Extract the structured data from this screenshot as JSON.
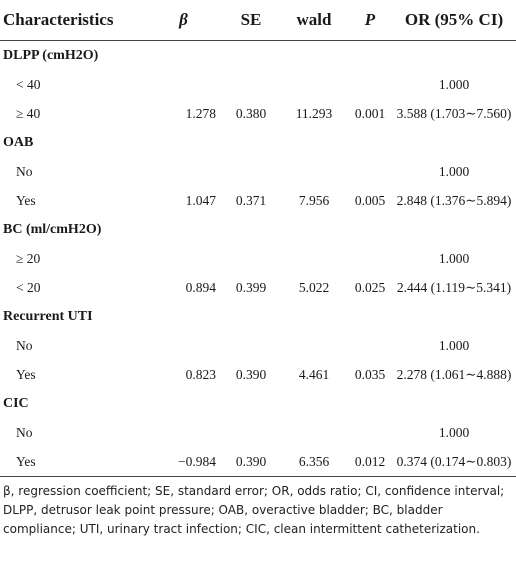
{
  "table": {
    "headers": [
      "Characteristics",
      "β",
      "SE",
      "wald",
      "P",
      "OR (95% CI)"
    ],
    "rows": [
      {
        "kind": "group",
        "cells": [
          "DLPP (cmH2O)",
          "",
          "",
          "",
          "",
          ""
        ]
      },
      {
        "kind": "sub",
        "cells": [
          "< 40",
          "",
          "",
          "",
          "",
          "1.000"
        ]
      },
      {
        "kind": "sub",
        "cells": [
          "≥ 40",
          "1.278",
          "0.380",
          "11.293",
          "0.001",
          "3.588 (1.703∼7.560)"
        ]
      },
      {
        "kind": "group",
        "cells": [
          "OAB",
          "",
          "",
          "",
          "",
          ""
        ]
      },
      {
        "kind": "sub",
        "cells": [
          "No",
          "",
          "",
          "",
          "",
          "1.000"
        ]
      },
      {
        "kind": "sub",
        "cells": [
          "Yes",
          "1.047",
          "0.371",
          "7.956",
          "0.005",
          "2.848 (1.376∼5.894)"
        ]
      },
      {
        "kind": "group",
        "cells": [
          "BC (ml/cmH2O)",
          "",
          "",
          "",
          "",
          ""
        ]
      },
      {
        "kind": "sub",
        "cells": [
          "≥ 20",
          "",
          "",
          "",
          "",
          "1.000"
        ]
      },
      {
        "kind": "sub",
        "cells": [
          "< 20",
          "0.894",
          "0.399",
          "5.022",
          "0.025",
          "2.444 (1.119∼5.341)"
        ]
      },
      {
        "kind": "group",
        "cells": [
          "Recurrent UTI",
          "",
          "",
          "",
          "",
          ""
        ]
      },
      {
        "kind": "sub",
        "cells": [
          "No",
          "",
          "",
          "",
          "",
          "1.000"
        ]
      },
      {
        "kind": "sub",
        "cells": [
          "Yes",
          "0.823",
          "0.390",
          "4.461",
          "0.035",
          "2.278 (1.061∼4.888)"
        ]
      },
      {
        "kind": "group",
        "cells": [
          "CIC",
          "",
          "",
          "",
          "",
          ""
        ]
      },
      {
        "kind": "sub",
        "cells": [
          "No",
          "",
          "",
          "",
          "",
          "1.000"
        ]
      },
      {
        "kind": "sub",
        "cells": [
          "Yes",
          "−0.984",
          "0.390",
          "6.356",
          "0.012",
          "0.374 (0.174∼0.803)"
        ]
      }
    ]
  },
  "footnote": "β, regression coefficient; SE, standard error; OR, odds ratio; CI, confidence interval; DLPP, detrusor leak point pressure; OAB, overactive bladder; BC, bladder compliance; UTI, urinary tract infection; CIC, clean intermittent catheterization."
}
